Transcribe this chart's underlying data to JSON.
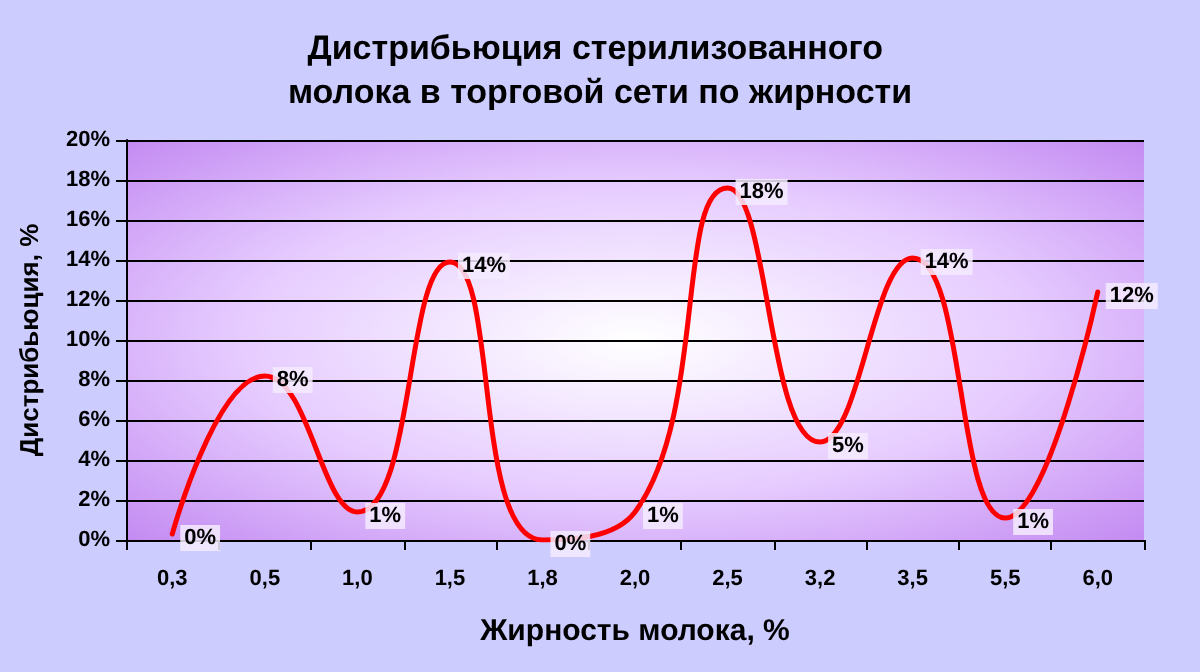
{
  "chart_data": {
    "type": "line",
    "title": "Дистрибьюция стерилизованного молока в торговой сети по жирности",
    "xlabel": "Жирность молока, %",
    "ylabel": "Дистрибьюция, %",
    "categories": [
      "0,3",
      "0,5",
      "1,0",
      "1,5",
      "1,8",
      "2,0",
      "2,5",
      "3,2",
      "3,5",
      "5,5",
      "6,0"
    ],
    "series": [
      {
        "color": "#ff0000",
        "values": [
          0.3,
          8.2,
          1.4,
          13.9,
          0,
          1.4,
          17.6,
          4.9,
          14.1,
          1.1,
          12.4
        ],
        "value_labels": [
          "0%",
          "8%",
          "1%",
          "14%",
          "0%",
          "1%",
          "18%",
          "5%",
          "14%",
          "1%",
          "12%"
        ]
      }
    ],
    "ylim": [
      0,
      20
    ],
    "yticks": [
      {
        "value": 0,
        "label": "0%"
      },
      {
        "value": 2,
        "label": "2%"
      },
      {
        "value": 4,
        "label": "4%"
      },
      {
        "value": 6,
        "label": "6%"
      },
      {
        "value": 8,
        "label": "8%"
      },
      {
        "value": 10,
        "label": "10%"
      },
      {
        "value": 12,
        "label": "12%"
      },
      {
        "value": 14,
        "label": "14%"
      },
      {
        "value": 16,
        "label": "16%"
      },
      {
        "value": 18,
        "label": "18%"
      },
      {
        "value": 20,
        "label": "20%"
      }
    ],
    "grid": "y",
    "marker": "none",
    "line_style": "solid"
  }
}
